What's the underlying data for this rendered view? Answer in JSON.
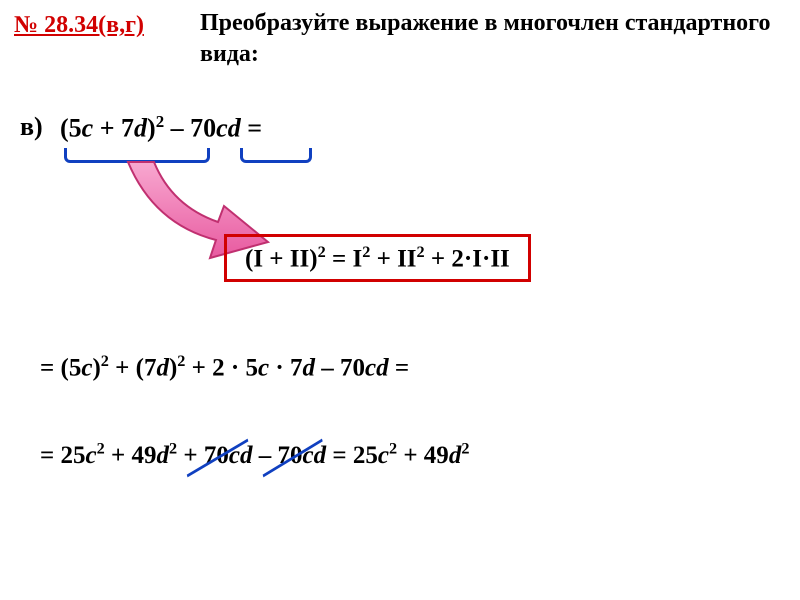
{
  "colors": {
    "accent_red": "#d10000",
    "accent_blue": "#1040c0",
    "arrow_fill": "#f070b0",
    "arrow_stroke": "#c03070",
    "text": "#000000",
    "background": "#ffffff"
  },
  "problem": {
    "number": "№ 28.34(в,г)",
    "task": "Преобразуйте выражение в многочлен стандартного вида:",
    "part_label": "в)",
    "expression_html": "(5<i>c</i> + 7<i>d</i>)<sup>2</sup> – 70<i>cd</i> ="
  },
  "formula": {
    "html": "(I + II)<sup>2</sup> = I<sup>2</sup> + II<sup>2</sup> + 2·I·II"
  },
  "steps": {
    "line1_html": "= (5<i>c</i>)<sup>2</sup> + (7<i>d</i>)<sup>2</sup> + 2 · 5<i>c</i> · 7<i>d</i> – 70<i>cd</i> =",
    "line2_prefix_html": "= 25<i>c</i><sup>2</sup> + 49<i>d</i><sup>2</sup>  ",
    "cancel1_html": "+ 70<i>cd</i>",
    "between": " ",
    "cancel2_html": "– 70<i>cd</i>",
    "line2_suffix_html": " = 25<i>c</i><sup>2</sup> + 49<i>d</i><sup>2</sup>"
  }
}
